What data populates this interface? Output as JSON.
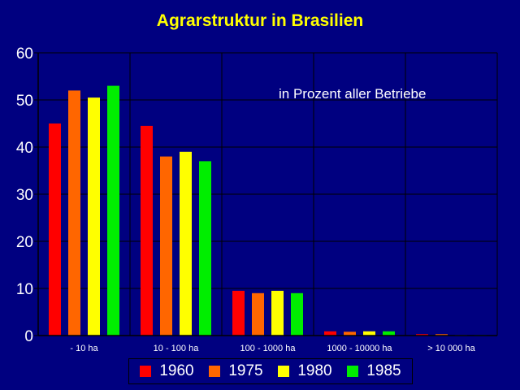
{
  "chart_data": {
    "type": "bar",
    "title": "Agrarstruktur in Brasilien",
    "annotation": "in Prozent aller Betriebe",
    "categories": [
      "- 10 ha",
      "10 - 100 ha",
      "100 - 1000 ha",
      "1000 - 10000 ha",
      "> 10 000 ha"
    ],
    "series": [
      {
        "name": "1960",
        "color": "#FF0000",
        "values": [
          45,
          44.5,
          9.5,
          0.9,
          0.3
        ]
      },
      {
        "name": "1975",
        "color": "#FF6600",
        "values": [
          52,
          38,
          9,
          0.8,
          0.3
        ]
      },
      {
        "name": "1980",
        "color": "#FFFF00",
        "values": [
          50.5,
          39,
          9.5,
          0.9,
          0.1
        ]
      },
      {
        "name": "1985",
        "color": "#00EE00",
        "values": [
          53,
          37,
          9,
          0.9,
          0.1
        ]
      }
    ],
    "ylim": [
      0,
      60
    ],
    "yticks": [
      "0",
      "10",
      "20",
      "30",
      "40",
      "50",
      "60"
    ],
    "grid": true,
    "legend_position": "bottom",
    "colors": {
      "background": "#000080",
      "title": "#FFFF00",
      "text": "#FFFFFF",
      "grid": "#000000"
    }
  }
}
